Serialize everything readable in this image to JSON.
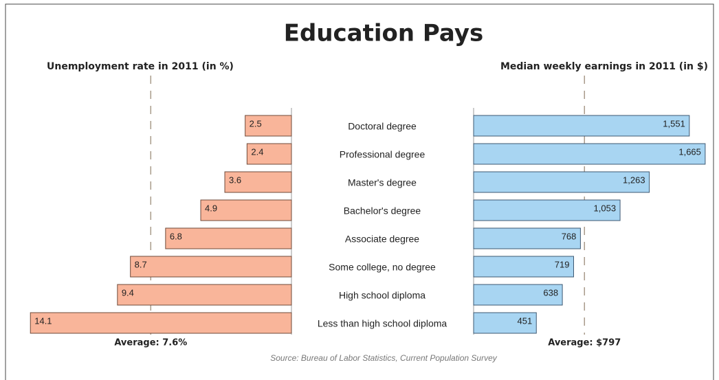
{
  "title": "Education Pays",
  "source": "Source: Bureau of Labor Statistics, Current Population Survey",
  "chart_data": [
    {
      "type": "bar",
      "orientation": "horizontal",
      "title": "Unemployment rate in 2011 (in %)",
      "categories": [
        "Doctoral degree",
        "Professional degree",
        "Master's degree",
        "Bachelor's degree",
        "Associate degree",
        "Some college, no degree",
        "High school diploma",
        "Less than high school diploma"
      ],
      "values": [
        2.5,
        2.4,
        3.6,
        4.9,
        6.8,
        8.7,
        9.4,
        14.1
      ],
      "color": "#f9b59a",
      "xlim": [
        0,
        15
      ],
      "average": 7.6,
      "average_label": "Average: 7.6%"
    },
    {
      "type": "bar",
      "orientation": "horizontal",
      "title": "Median weekly earnings in 2011 (in $)",
      "values": [
        1551,
        1665,
        1263,
        1053,
        768,
        719,
        638,
        451
      ],
      "value_labels": [
        "1,551",
        "1,665",
        "1,263",
        "1,053",
        "768",
        "719",
        "638",
        "451"
      ],
      "color": "#a8d5f2",
      "xlim": [
        0,
        1700
      ],
      "average": 797,
      "average_label": "Average: $797"
    }
  ]
}
